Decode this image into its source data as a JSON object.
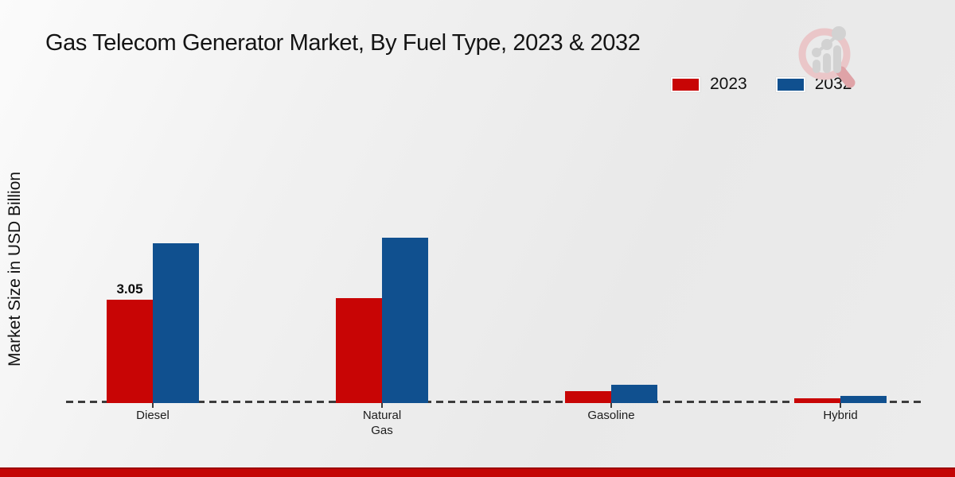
{
  "page": {
    "title": "Gas Telecom Generator Market, By Fuel Type, 2023 & 2032",
    "y_axis_label": "Market Size in USD Billion"
  },
  "legend": {
    "items": [
      {
        "label": "2023",
        "color": "#c80505"
      },
      {
        "label": "2032",
        "color": "#10508f"
      }
    ]
  },
  "branding": {
    "logo_icon": "magnifier-growth-chart-watermark",
    "bottom_bar_color": "#c40505"
  },
  "chart_data": {
    "type": "bar",
    "title": "Gas Telecom Generator Market, By Fuel Type, 2023 & 2032",
    "xlabel": "",
    "ylabel": "Market Size in USD Billion",
    "categories": [
      "Diesel",
      "Natural Gas",
      "Gasoline",
      "Hybrid"
    ],
    "series": [
      {
        "name": "2023",
        "color": "#c80505",
        "values": [
          3.05,
          3.1,
          0.35,
          0.15
        ],
        "labels": [
          "3.05",
          "",
          "",
          ""
        ]
      },
      {
        "name": "2032",
        "color": "#10508f",
        "values": [
          4.72,
          4.88,
          0.55,
          0.2
        ],
        "labels": [
          "",
          "",
          "",
          ""
        ]
      }
    ],
    "ylim": [
      0,
      5.5
    ],
    "grid": false,
    "baseline_style": "dashed",
    "legend_position": "top-right"
  }
}
